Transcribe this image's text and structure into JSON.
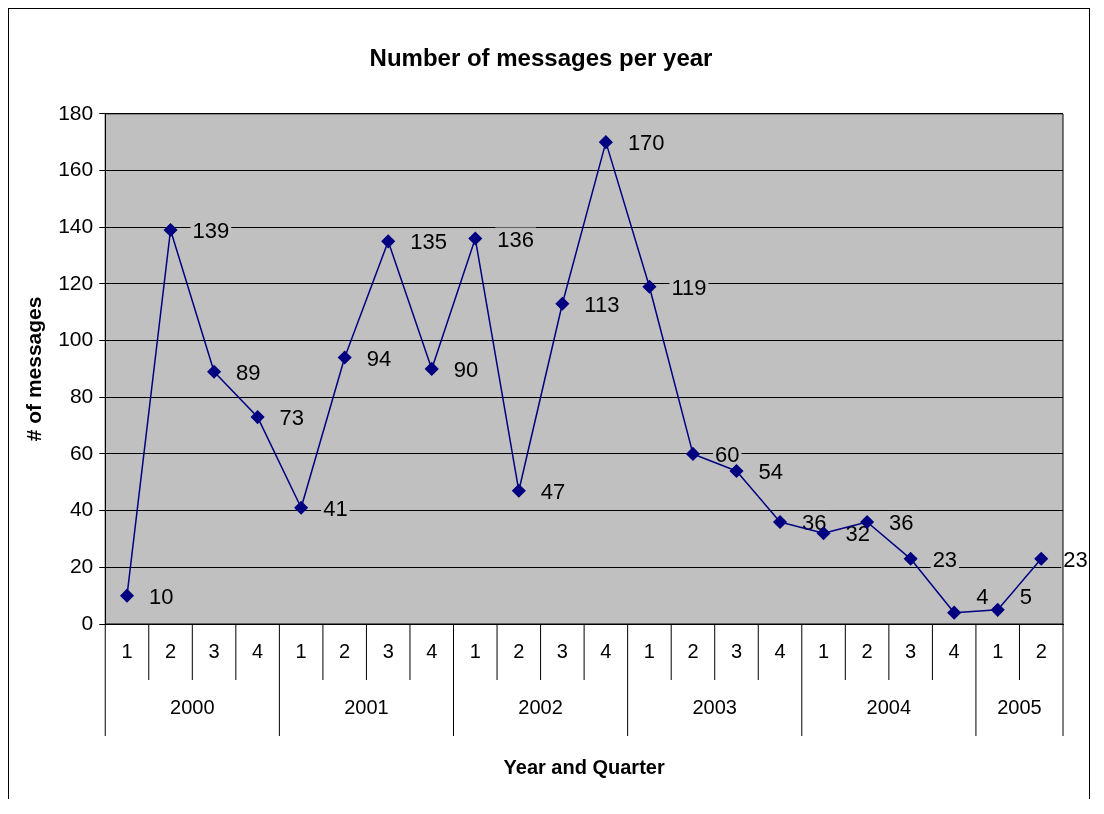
{
  "chart_data": {
    "type": "line",
    "title": "Number of messages per year",
    "xlabel": "Year and Quarter",
    "ylabel": "# of messages",
    "categories": [
      "1",
      "2",
      "3",
      "4",
      "1",
      "2",
      "3",
      "4",
      "1",
      "2",
      "3",
      "4",
      "1",
      "2",
      "3",
      "4",
      "1",
      "2",
      "3",
      "4",
      "1",
      "2"
    ],
    "annotations": [
      "2000",
      "2001",
      "2002",
      "2003",
      "2004",
      "2005"
    ],
    "series": [
      {
        "color": "#000080",
        "values": [
          10,
          139,
          89,
          73,
          41,
          94,
          135,
          90,
          136,
          47,
          113,
          170,
          119,
          60,
          54,
          36,
          32,
          36,
          23,
          4,
          5,
          23
        ]
      }
    ],
    "ylim": [
      0,
      180
    ],
    "yticks": [
      0,
      20,
      40,
      60,
      80,
      100,
      120,
      140,
      160,
      180
    ],
    "grid": "y",
    "legend": false,
    "marker": "diamond",
    "line_style": "solid",
    "data_labels": true
  }
}
